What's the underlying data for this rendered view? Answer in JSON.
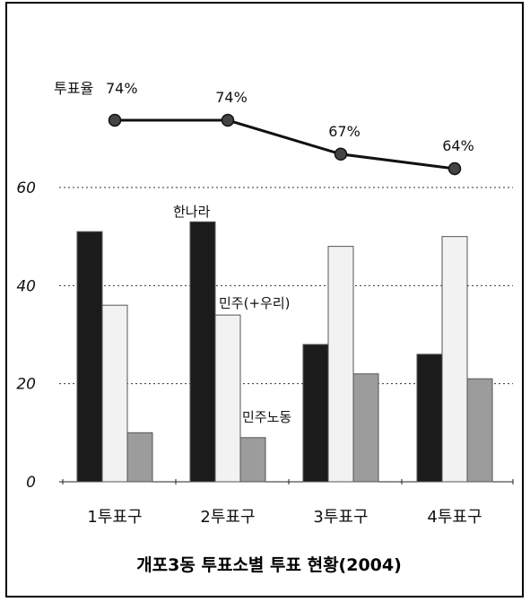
{
  "chart_data": {
    "type": "bar",
    "title": "개포3동 투표소별 투표 현황(2004)",
    "categories": [
      "1투표구",
      "2투표구",
      "3투표구",
      "4투표구"
    ],
    "series": [
      {
        "name": "한나라",
        "values": [
          51,
          53,
          28,
          26
        ],
        "color": "#1b1b1b"
      },
      {
        "name": "민주(+우리)",
        "values": [
          36,
          34,
          48,
          50
        ],
        "color": "#f2f2f2"
      },
      {
        "name": "민주노동",
        "values": [
          10,
          9,
          22,
          21
        ],
        "color": "#9c9c9c"
      }
    ],
    "turnout": {
      "label": "투표율",
      "values": [
        74,
        74,
        67,
        64
      ],
      "labels": [
        "74%",
        "74%",
        "67%",
        "64%"
      ]
    },
    "yticks": [
      "0",
      "20",
      "40",
      "60"
    ],
    "ylim": [
      0,
      60
    ],
    "grid": true
  }
}
